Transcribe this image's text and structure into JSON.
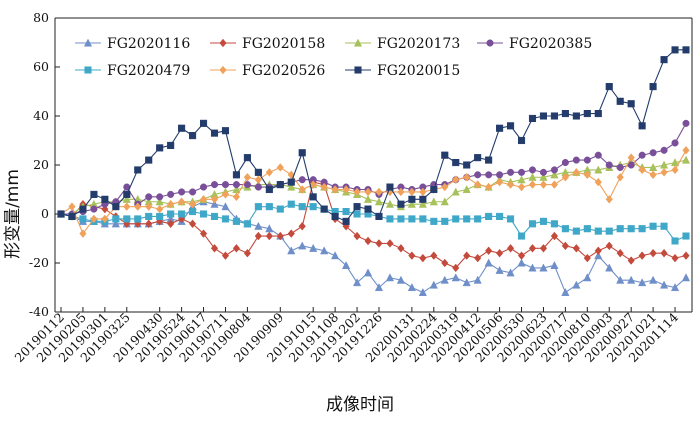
{
  "chart_data": {
    "type": "line",
    "xlabel": "成像时间",
    "ylabel": "形变量/mm",
    "ylim": [
      -40,
      80
    ],
    "yticks": [
      -40,
      -20,
      0,
      20,
      40,
      60,
      80
    ],
    "legend_position": "top",
    "grid": false,
    "x": [
      "20190112",
      "20190124",
      "20190205",
      "20190217",
      "20190301",
      "20190313",
      "20190325",
      "20190406",
      "20190418",
      "20190430",
      "20190512",
      "20190524",
      "20190605",
      "20190617",
      "20190629",
      "20190711",
      "20190723",
      "20190804",
      "20190816",
      "20190828",
      "20190909",
      "20190921",
      "20191003",
      "20191015",
      "20191027",
      "20191108",
      "20191120",
      "20191202",
      "20191214",
      "20191226",
      "20200107",
      "20200119",
      "20200131",
      "20200212",
      "20200224",
      "20200307",
      "20200319",
      "20200331",
      "20200412",
      "20200424",
      "20200506",
      "20200518",
      "20200530",
      "20200611",
      "20200623",
      "20200705",
      "20200717",
      "20200729",
      "20200810",
      "20200822",
      "20200903",
      "20200915",
      "20200927",
      "20201009",
      "20201021",
      "20201102",
      "20201114",
      "20201126"
    ],
    "xticks": [
      "20190112",
      "20190205",
      "20190301",
      "20190325",
      "20190430",
      "20190524",
      "20190617",
      "20190711",
      "20190804",
      "20190909",
      "20191015",
      "20191108",
      "20191202",
      "20191226",
      "20200131",
      "20200224",
      "20200319",
      "20200412",
      "20200506",
      "20200530",
      "20200623",
      "20200717",
      "20200810",
      "20200903",
      "20200927",
      "20201021",
      "20201114"
    ],
    "series": [
      {
        "name": "FG2020116",
        "color": "#6f8fc9",
        "marker": "triangle",
        "values": [
          0,
          -1,
          -3,
          -3,
          -4,
          -4,
          -4,
          -4,
          -4,
          -3,
          -2,
          -3,
          3,
          5,
          4,
          3,
          -2,
          -4,
          -5,
          -6,
          -9,
          -15,
          -13,
          -14,
          -15,
          -17,
          -21,
          -28,
          -24,
          -30,
          -26,
          -27,
          -30,
          -32,
          -29,
          -27,
          -26,
          -28,
          -27,
          -20,
          -23,
          -24,
          -20,
          -22,
          -22,
          -21,
          -32,
          -29,
          -26,
          -17,
          -22,
          -27,
          -27,
          -28,
          -27,
          -29,
          -30,
          -26
        ]
      },
      {
        "name": "FG2020158",
        "color": "#c44a3c",
        "marker": "diamond",
        "values": [
          0,
          -1,
          4,
          3,
          2,
          -1,
          -4,
          -4,
          -4,
          -3,
          -4,
          -2,
          -4,
          -8,
          -14,
          -17,
          -14,
          -16,
          -9,
          -9,
          -9,
          -8,
          -5,
          13,
          12,
          -2,
          -5,
          -9,
          -11,
          -12,
          -12,
          -14,
          -17,
          -18,
          -17,
          -20,
          -22,
          -17,
          -18,
          -15,
          -16,
          -14,
          -17,
          -14,
          -14,
          -9,
          -13,
          -14,
          -18,
          -15,
          -13,
          -16,
          -19,
          -17,
          -16,
          -16,
          -18,
          -17
        ]
      },
      {
        "name": "FG2020173",
        "color": "#a7c15b",
        "marker": "triangle",
        "values": [
          0,
          0,
          3,
          4,
          5,
          5,
          6,
          6,
          5,
          5,
          4,
          5,
          5,
          6,
          8,
          9,
          10,
          11,
          12,
          12,
          12,
          11,
          10,
          12,
          11,
          10,
          9,
          8,
          6,
          5,
          4,
          3,
          4,
          4,
          5,
          5,
          9,
          10,
          12,
          11,
          14,
          13,
          14,
          15,
          15,
          16,
          17,
          17,
          18,
          18,
          19,
          20,
          21,
          19,
          19,
          20,
          21,
          22
        ]
      },
      {
        "name": "FG2020385",
        "color": "#7a4f99",
        "marker": "circle",
        "values": [
          0,
          0,
          1,
          2,
          4,
          5,
          11,
          4,
          7,
          7,
          8,
          9,
          9,
          11,
          12,
          12,
          12,
          12,
          11,
          11,
          12,
          13,
          14,
          14,
          13,
          11,
          11,
          10,
          10,
          8,
          10,
          11,
          10,
          11,
          12,
          12,
          14,
          15,
          16,
          16,
          16,
          17,
          17,
          18,
          17,
          18,
          21,
          22,
          22,
          24,
          20,
          19,
          20,
          24,
          25,
          26,
          29,
          37
        ]
      },
      {
        "name": "FG2020479",
        "color": "#3fa8c8",
        "marker": "square",
        "values": [
          0,
          -1,
          -2,
          -3,
          -3,
          -2,
          -2,
          -2,
          -1,
          -1,
          0,
          0,
          1,
          0,
          -1,
          -2,
          -3,
          -4,
          3,
          3,
          2,
          4,
          3,
          3,
          2,
          1,
          1,
          0,
          0,
          -1,
          -2,
          -2,
          -2,
          -2,
          -3,
          -3,
          -2,
          -2,
          -2,
          -1,
          -1,
          -2,
          -9,
          -4,
          -3,
          -4,
          -6,
          -7,
          -6,
          -7,
          -7,
          -6,
          -6,
          -6,
          -5,
          -5,
          -11,
          -9
        ]
      },
      {
        "name": "FG2020526",
        "color": "#f0a15a",
        "marker": "diamond",
        "values": [
          0,
          3,
          -8,
          -2,
          -2,
          3,
          3,
          3,
          3,
          2,
          4,
          5,
          4,
          6,
          6,
          8,
          7,
          15,
          14,
          17,
          19,
          16,
          10,
          12,
          11,
          10,
          10,
          9,
          9,
          9,
          9,
          9,
          9,
          9,
          10,
          11,
          14,
          15,
          12,
          11,
          13,
          12,
          11,
          12,
          12,
          12,
          15,
          17,
          16,
          13,
          6,
          15,
          23,
          18,
          16,
          17,
          18,
          26
        ]
      },
      {
        "name": "FG2020015",
        "color": "#233c6b",
        "marker": "square",
        "values": [
          0,
          -1,
          2,
          8,
          6,
          3,
          8,
          18,
          22,
          27,
          28,
          35,
          32,
          37,
          33,
          34,
          16,
          23,
          17,
          10,
          12,
          13,
          25,
          7,
          2,
          -1,
          -3,
          3,
          2,
          -1,
          11,
          4,
          6,
          6,
          10,
          24,
          21,
          20,
          23,
          22,
          35,
          36,
          30,
          39,
          40,
          40,
          41,
          40,
          41,
          41,
          52,
          46,
          45,
          36,
          52,
          63,
          67,
          67
        ]
      }
    ]
  }
}
